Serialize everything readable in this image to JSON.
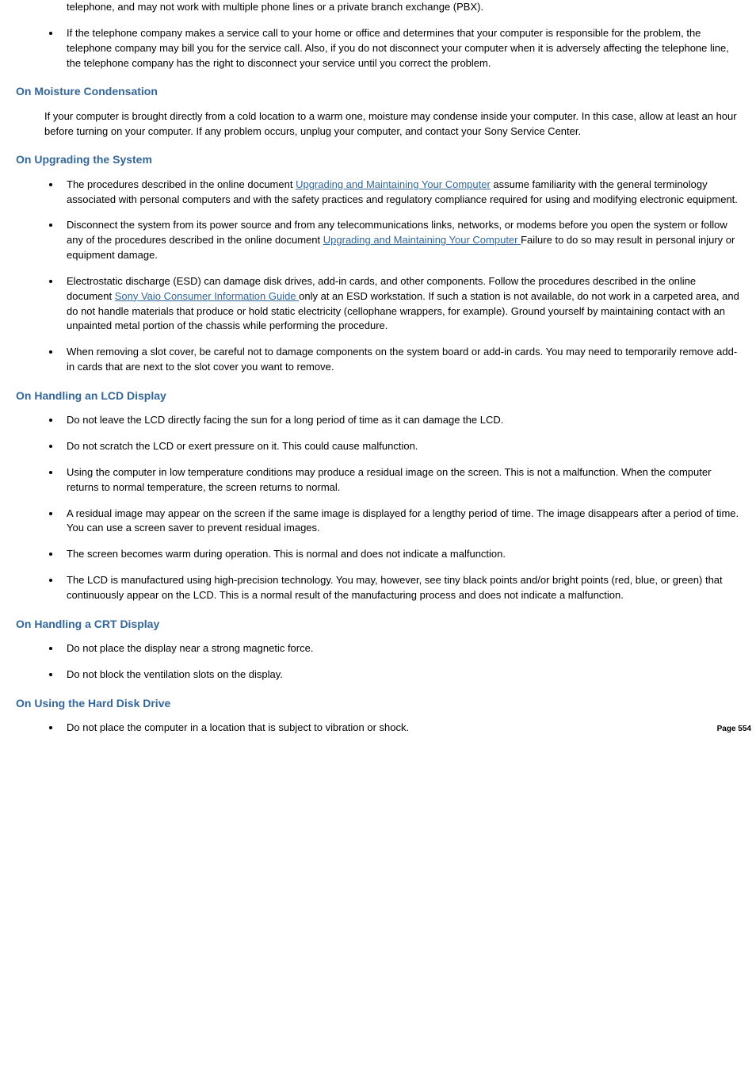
{
  "intro_bullet0_part": "telephone, and may not work with multiple phone lines or a private branch exchange (PBX).",
  "intro_bullet1": "If the telephone company makes a service call to your home or office and determines that your computer is responsible for the problem, the telephone company may bill you for the service call. Also, if you do not disconnect your computer when it is adversely affecting the telephone line, the telephone company has the right to disconnect your service until you correct the problem.",
  "sections": {
    "moisture": {
      "heading": "On Moisture Condensation",
      "para": "If your computer is brought directly from a cold location to a warm one, moisture may condense inside your computer. In this case, allow at least an hour before turning on your computer. If any problem occurs, unplug your computer, and contact your Sony Service Center."
    },
    "upgrading": {
      "heading": "On Upgrading the System",
      "b0_pre": "The procedures described in the online document ",
      "b0_link": "Upgrading and Maintaining Your Computer",
      "b0_post": " assume familiarity with the general terminology associated with personal computers and with the safety practices and regulatory compliance required for using and modifying electronic equipment.",
      "b1_pre": "Disconnect the system from its power source and from any telecommunications links, networks, or modems before you open the system or follow any of the procedures described in the online document ",
      "b1_link": "Upgrading and Maintaining Your Computer ",
      "b1_post": "Failure to do so may result in personal injury or equipment damage.",
      "b2_pre": "Electrostatic discharge (ESD) can damage disk drives, add-in cards, and other components. Follow the procedures described in the online document ",
      "b2_link": "Sony Vaio Consumer Information Guide ",
      "b2_post": "only at an ESD workstation. If such a station is not available, do not work in a carpeted area, and do not handle materials that produce or hold static electricity (cellophane wrappers, for example). Ground yourself by maintaining contact with an unpainted metal portion of the chassis while performing the procedure.",
      "b3": "When removing a slot cover, be careful not to damage components on the system board or add-in cards. You may need to temporarily remove add-in cards that are next to the slot cover you want to remove."
    },
    "lcd": {
      "heading": "On Handling an LCD Display",
      "b0": "Do not leave the LCD directly facing the sun for a long period of time as it can damage the LCD.",
      "b1": "Do not scratch the LCD or exert pressure on it. This could cause malfunction.",
      "b2": "Using the computer in low temperature conditions may produce a residual image on the screen. This is not a malfunction. When the computer returns to normal temperature, the screen returns to normal.",
      "b3": "A residual image may appear on the screen if the same image is displayed for a lengthy period of time. The image disappears after a period of time. You can use a screen saver to prevent residual images.",
      "b4": "The screen becomes warm during operation. This is normal and does not indicate a malfunction.",
      "b5": "The LCD is manufactured using high-precision technology. You may, however, see tiny black points and/or bright points (red, blue, or green) that continuously appear on the LCD. This is a normal result of the manufacturing process and does not indicate a malfunction."
    },
    "crt": {
      "heading": "On Handling a CRT Display",
      "b0": "Do not place the display near a strong magnetic force.",
      "b1": "Do not block the ventilation slots on the display."
    },
    "hdd": {
      "heading": "On Using the Hard Disk Drive",
      "b0": "Do not place the computer in a location that is subject to vibration or shock."
    }
  },
  "page_number": "Page 554",
  "link_color": "#336699",
  "heading_color": "#336699"
}
